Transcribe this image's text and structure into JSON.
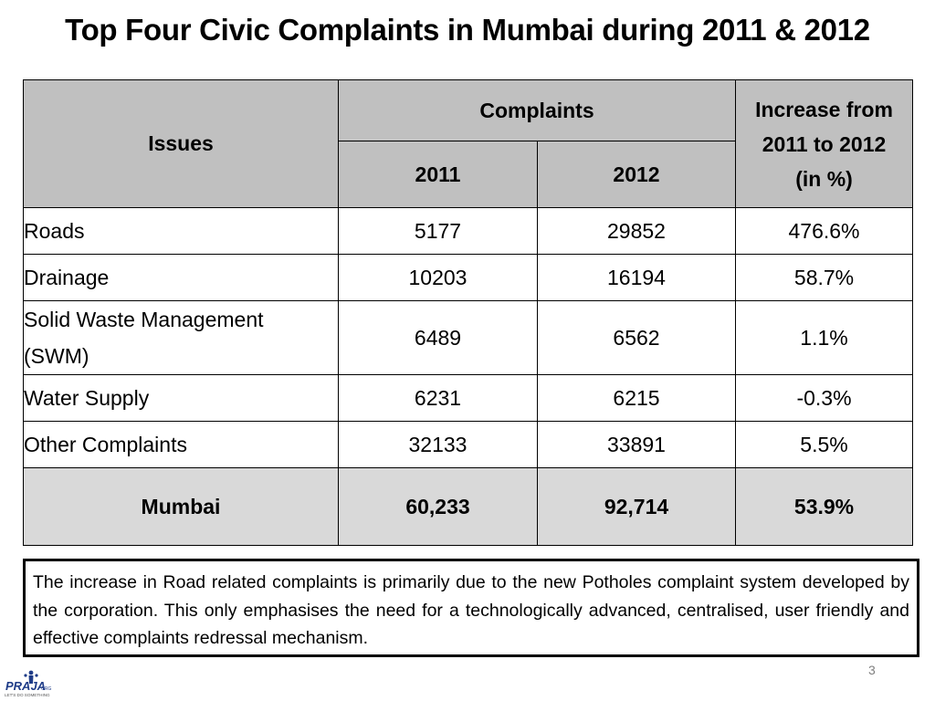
{
  "slide": {
    "title": "Top Four Civic Complaints in Mumbai during 2011 & 2012",
    "page_number": "3"
  },
  "table": {
    "headers": {
      "issues": "Issues",
      "complaints": "Complaints",
      "year_2011": "2011",
      "year_2012": "2012",
      "increase_line1": "Increase from",
      "increase_line2": "2011 to 2012",
      "increase_line3": "(in %)"
    },
    "rows": [
      {
        "issue": "Roads",
        "y2011": "5177",
        "y2012": "29852",
        "increase": "476.6%"
      },
      {
        "issue": "Drainage",
        "y2011": "10203",
        "y2012": "16194",
        "increase": "58.7%"
      },
      {
        "issue_line1": "Solid Waste Management",
        "issue_line2": "(SWM)",
        "y2011": "6489",
        "y2012": "6562",
        "increase": "1.1%"
      },
      {
        "issue": "Water Supply",
        "y2011": "6231",
        "y2012": "6215",
        "increase": "-0.3%"
      },
      {
        "issue": "Other Complaints",
        "y2011": "32133",
        "y2012": "33891",
        "increase": "5.5%"
      }
    ],
    "total": {
      "issue": "Mumbai",
      "y2011": "60,233",
      "y2012": "92,714",
      "increase": "53.9%"
    }
  },
  "note": {
    "text": "The increase in Road related complaints is primarily due to the new Potholes complaint system developed by the corporation. This only emphasises the need for a technologically advanced, centralised, user friendly and effective complaints redressal mechanism."
  },
  "logo": {
    "text": "PRAJA",
    "suffix": "ORG",
    "tagline": "LET'S DO SOMETHING",
    "color": "#1f3c88"
  }
}
